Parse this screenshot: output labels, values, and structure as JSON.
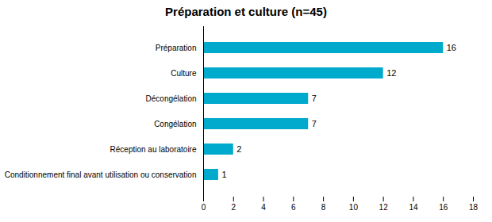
{
  "chart_data": {
    "type": "bar",
    "title": "Préparation et culture (n=45)",
    "orientation": "horizontal",
    "categories": [
      "Conditionnement final avant utilisation ou conservation",
      "Réception au laboratoire",
      "Congélation",
      "Décongélation",
      "Culture",
      "Préparation"
    ],
    "values": [
      1,
      2,
      7,
      7,
      12,
      16
    ],
    "color": "#00AACC",
    "xlim": [
      0,
      18
    ],
    "xticks": [
      0,
      2,
      4,
      6,
      8,
      10,
      12,
      14,
      16,
      18
    ],
    "grid": false,
    "data_labels": true
  }
}
